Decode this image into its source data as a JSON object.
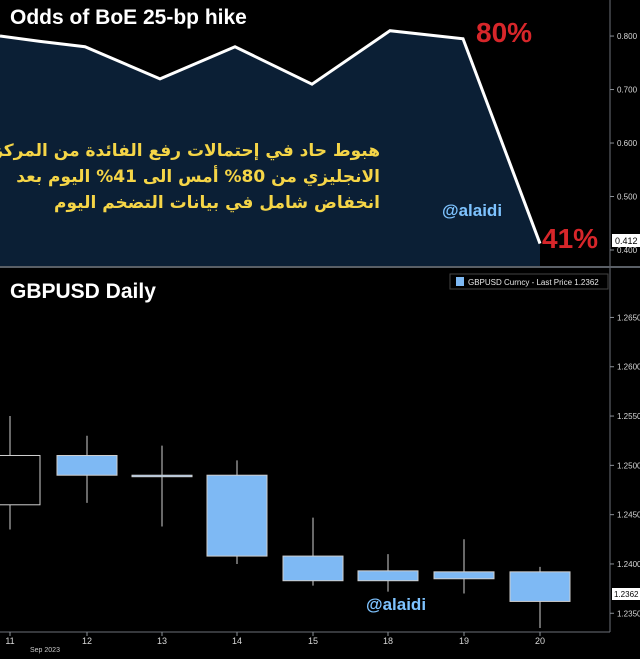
{
  "chart_data": [
    {
      "type": "area",
      "title": "Odds of BoE 25-bp hike",
      "values": [
        0.8,
        0.79,
        0.78,
        0.72,
        0.78,
        0.71,
        0.81,
        0.795,
        0.412
      ],
      "ylim": [
        0.4,
        0.83
      ],
      "yticks": [
        "0.800",
        "0.700",
        "0.600",
        "0.500",
        "0.400"
      ],
      "last_value_label": "0.412",
      "annotations": {
        "high_label": "80%",
        "low_label": "41%",
        "watermark": "@alaidi"
      },
      "arabic_note": [
        "هبوط حاد في إحتمالات رفع الفائدة من المركزي",
        "الانجليزي من 80% أمس الى 41% اليوم بعد",
        "انخفاض شامل في بيانات التضخم اليوم"
      ]
    },
    {
      "type": "candlestick",
      "title": "GBPUSD Daily",
      "legend": "GBPUSD Curncy - Last Price  1.2362",
      "categories": [
        "11",
        "12",
        "13",
        "14",
        "15",
        "18",
        "19",
        "20"
      ],
      "x_sublabel": "Sep 2023",
      "candles": [
        {
          "open": 1.246,
          "high": 1.255,
          "low": 1.2435,
          "close": 1.251
        },
        {
          "open": 1.251,
          "high": 1.253,
          "low": 1.2462,
          "close": 1.249
        },
        {
          "open": 1.249,
          "high": 1.252,
          "low": 1.2438,
          "close": 1.249
        },
        {
          "open": 1.249,
          "high": 1.2505,
          "low": 1.24,
          "close": 1.2408
        },
        {
          "open": 1.2408,
          "high": 1.2447,
          "low": 1.2378,
          "close": 1.2383
        },
        {
          "open": 1.2393,
          "high": 1.241,
          "low": 1.2372,
          "close": 1.2383
        },
        {
          "open": 1.2392,
          "high": 1.2425,
          "low": 1.237,
          "close": 1.2385
        },
        {
          "open": 1.2392,
          "high": 1.2397,
          "low": 1.2335,
          "close": 1.2362
        }
      ],
      "ylim": [
        1.2331,
        1.269
      ],
      "yticks": [
        "1.2650",
        "1.2600",
        "1.2550",
        "1.2500",
        "1.2450",
        "1.2400",
        "1.2350"
      ],
      "last_value_label": "1.2362",
      "annotations": {
        "watermark": "@alaidi"
      }
    }
  ],
  "colors": {
    "area_fill": "#0b1f35",
    "line": "#ffffff",
    "candle_fill": "#7eb9f4",
    "high_label": "#d7262a",
    "low_label": "#d7262a",
    "watermark": "#7ec3ff",
    "arabic_text": "#f5d547"
  }
}
